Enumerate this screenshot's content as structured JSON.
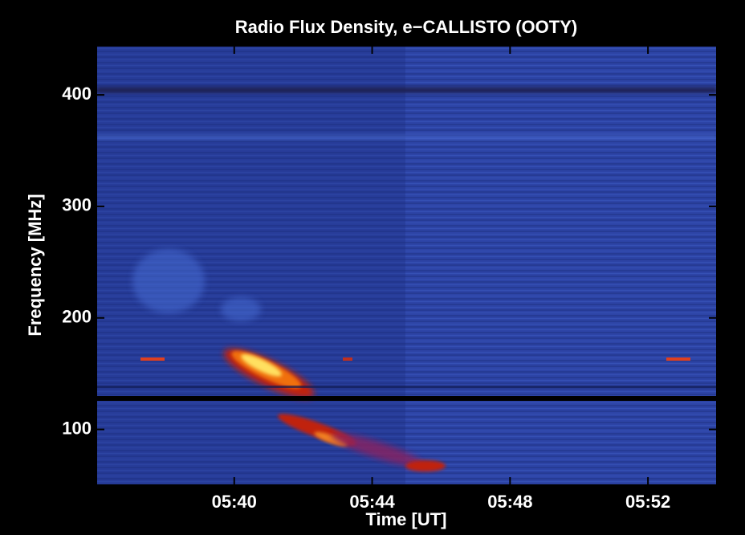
{
  "chart_data": {
    "type": "spectrogram",
    "title": "Radio Flux Density, e−CALLISTO (OOTY)",
    "xlabel": "Time [UT]",
    "ylabel": "Frequency [MHz]",
    "xlim": [
      36,
      54
    ],
    "xticks": [
      {
        "value": 40,
        "label": "05:40"
      },
      {
        "value": 44,
        "label": "05:44"
      },
      {
        "value": 48,
        "label": "05:48"
      },
      {
        "value": 52,
        "label": "05:52"
      }
    ],
    "ylim": [
      50,
      444
    ],
    "yticks": [
      100,
      200,
      300,
      400
    ]
  }
}
